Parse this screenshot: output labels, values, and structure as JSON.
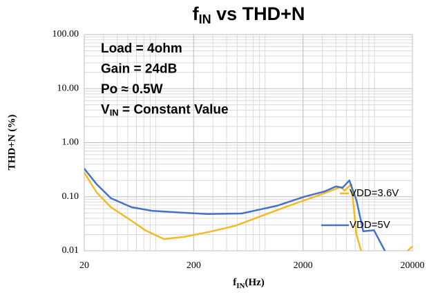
{
  "chart_data": {
    "type": "line",
    "title": [
      "f",
      "IN",
      " vs THD+N"
    ],
    "xlabel": [
      "f",
      "IN",
      "(Hz)"
    ],
    "ylabel": "THD+N (%)",
    "annotations": [
      [
        "Load = 4ohm"
      ],
      [
        "Gain = 24dB"
      ],
      [
        "Po ≈ 0.5W"
      ],
      [
        "V",
        "IN",
        " = Constant Value"
      ]
    ],
    "xscale": "log",
    "yscale": "log",
    "xlim": [
      20,
      20000
    ],
    "ylim": [
      0.01,
      100
    ],
    "xticks": [
      20,
      200,
      2000,
      20000
    ],
    "yticks": [
      0.01,
      {
        "value": 0.1,
        "label": "0.10"
      },
      {
        "value": 1,
        "label": "1.00"
      },
      {
        "value": 10,
        "label": "10.00"
      },
      {
        "value": 100,
        "label": "100.00"
      }
    ],
    "grid": true,
    "minor_grid": true,
    "legend": "inline",
    "series": [
      {
        "name": "VDD=3.6V",
        "color": "#f5b921",
        "x": [
          20,
          26,
          35,
          54,
          72,
          107,
          161,
          268,
          480,
          856,
          1540,
          2760,
          4000,
          4400,
          4800,
          5530,
          6160,
          7000,
          17000,
          20000
        ],
        "values": [
          0.28,
          0.12,
          0.064,
          0.036,
          0.024,
          0.0165,
          0.018,
          0.022,
          0.029,
          0.045,
          0.07,
          0.106,
          0.14,
          0.15,
          0.13,
          0.17,
          0.02,
          0.008,
          0.009,
          0.012
        ]
      },
      {
        "name": "VDD=5V",
        "color": "#4472c4",
        "x": [
          20,
          26,
          35,
          54,
          83,
          149,
          268,
          550,
          1150,
          2050,
          3170,
          4000,
          4600,
          5300,
          6160,
          7100,
          8900,
          11200,
          12000
        ],
        "values": [
          0.33,
          0.17,
          0.094,
          0.064,
          0.055,
          0.051,
          0.048,
          0.049,
          0.068,
          0.1,
          0.126,
          0.155,
          0.147,
          0.2,
          0.086,
          0.023,
          0.024,
          0.01,
          0.008
        ]
      }
    ]
  }
}
